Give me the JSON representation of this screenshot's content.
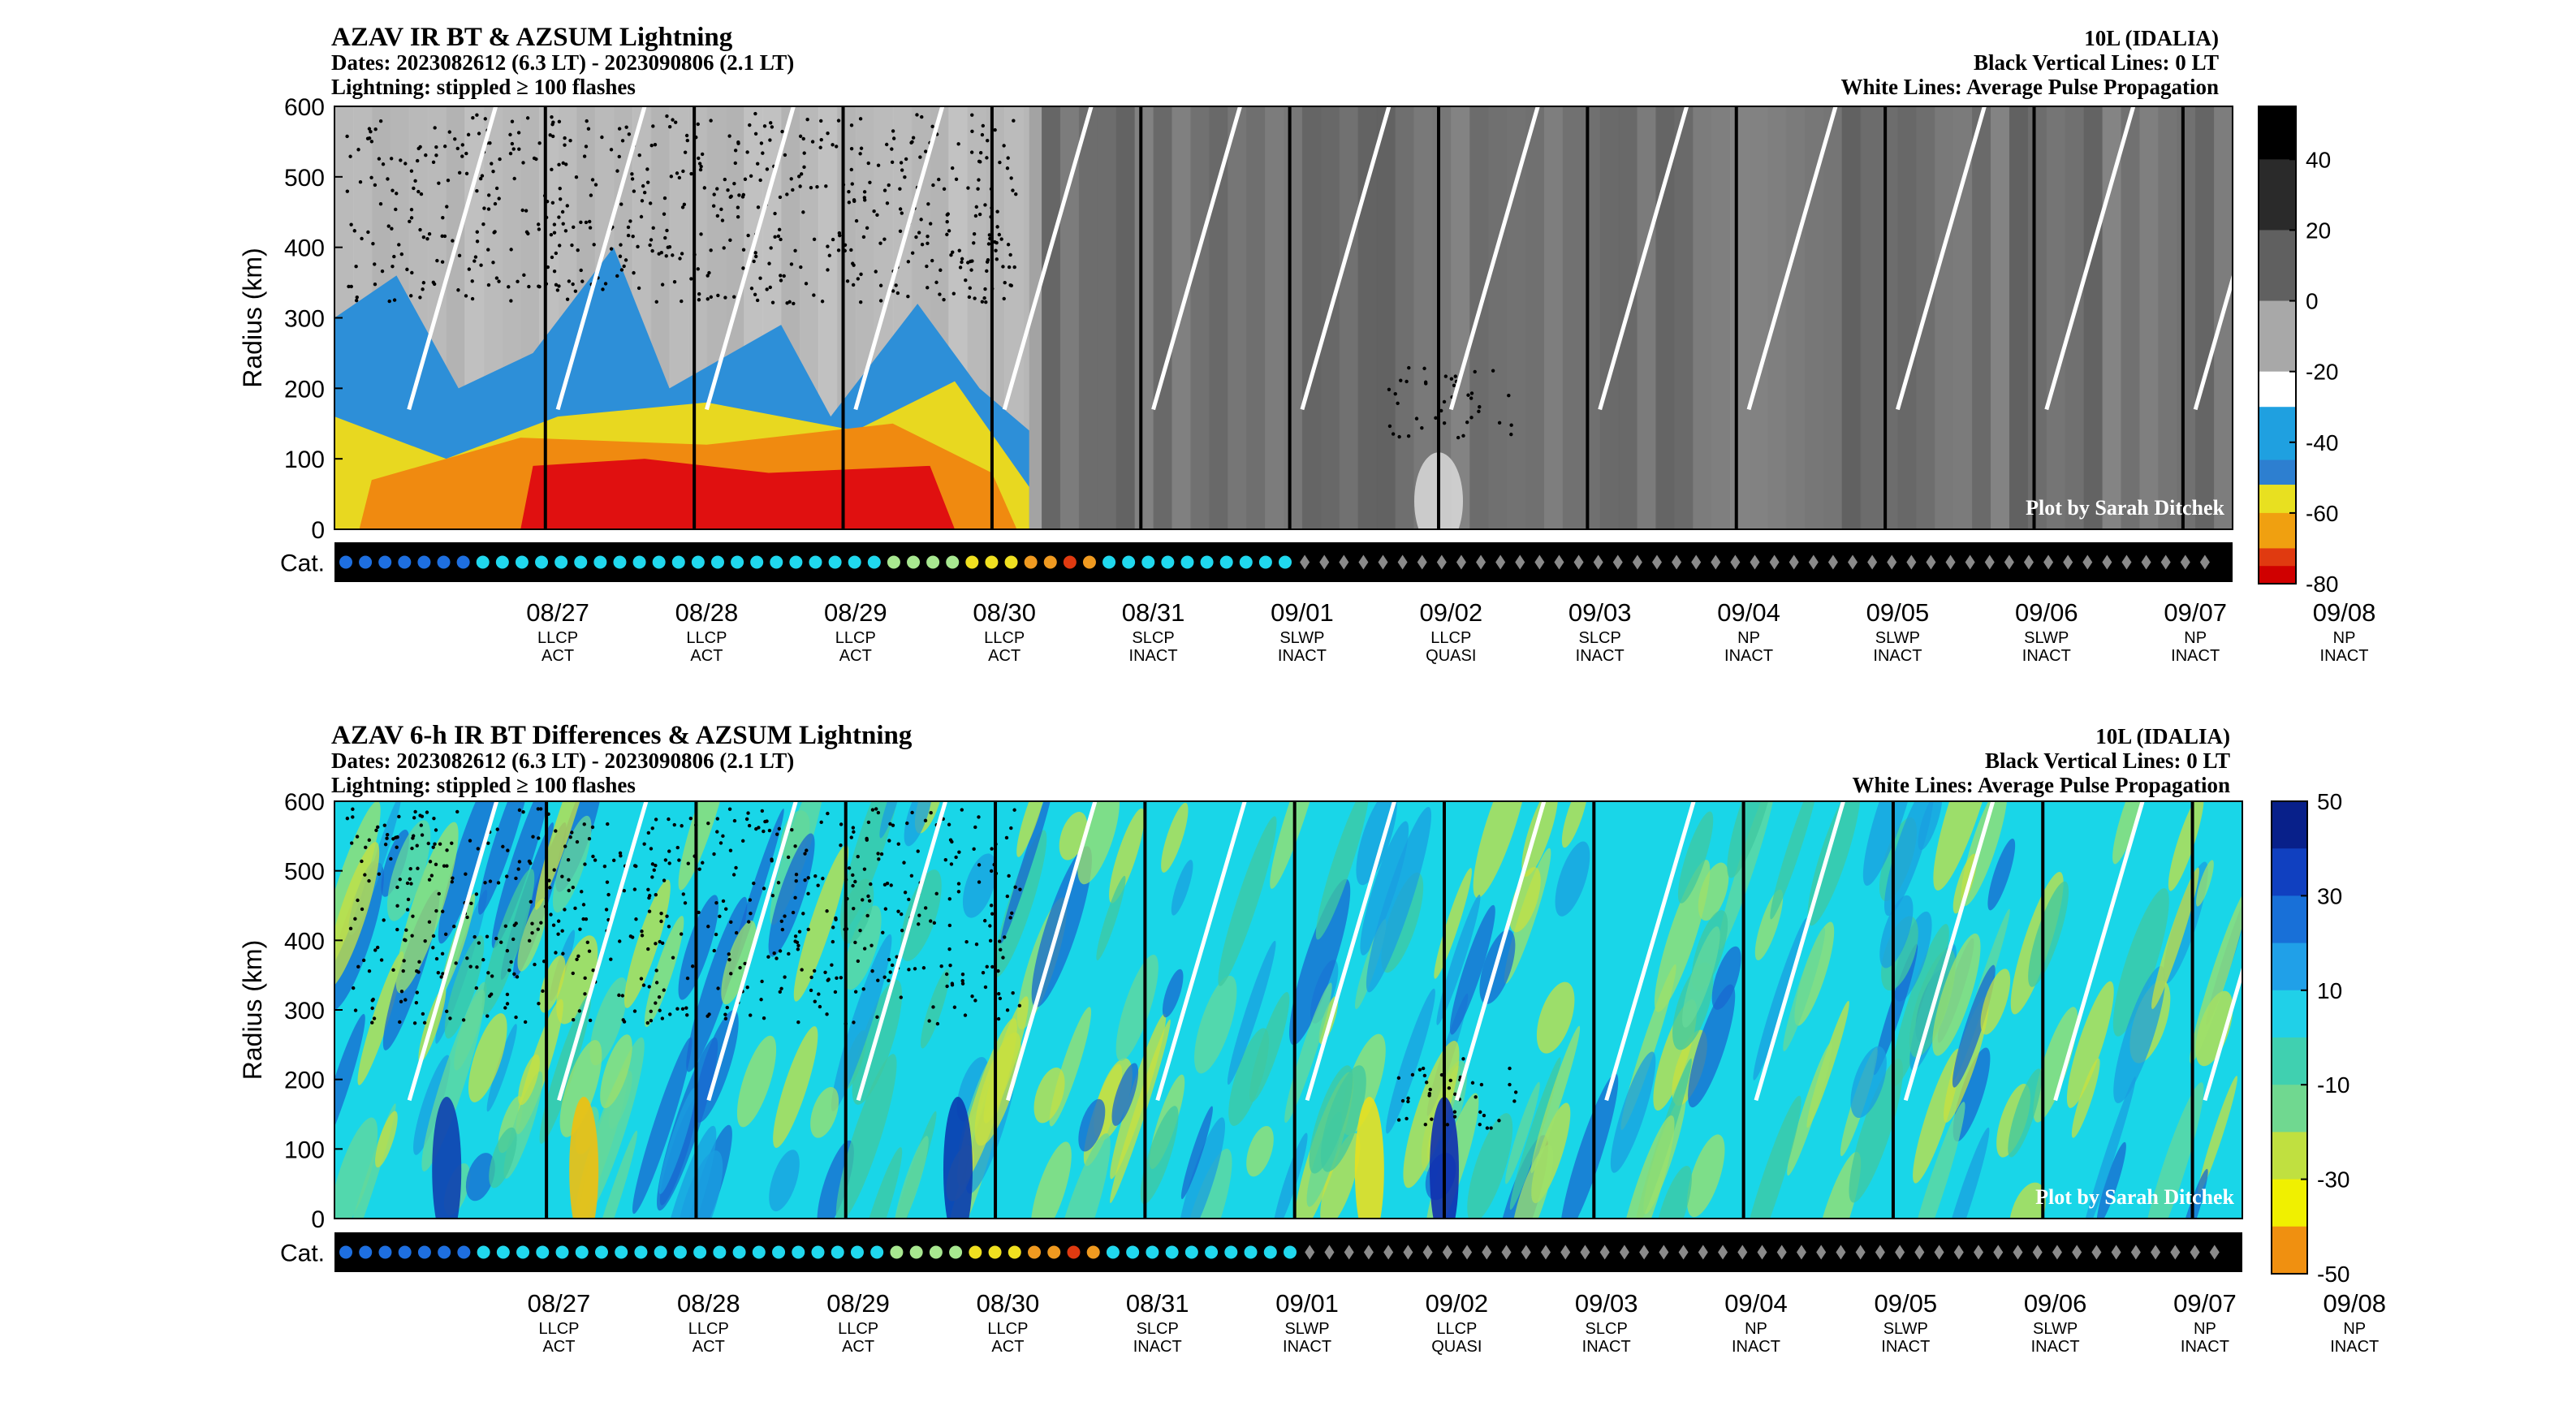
{
  "panels": [
    {
      "title": "AZAV IR BT & AZSUM Lightning",
      "dates": "Dates: 2023082612 (6.3 LT) - 2023090806 (2.1 LT)",
      "lightning": "Lightning: stippled ≥ 100 flashes",
      "storm": "10L (IDALIA)",
      "vlines_note": "Black Vertical Lines: 0 LT",
      "wlines_note": "White Lines: Average Pulse Propagation",
      "credit": "Plot by Sarah Ditchek",
      "ylabel": "Radius (km)",
      "cat_label": "Cat.",
      "yticks": [
        "0",
        "100",
        "200",
        "300",
        "400",
        "500",
        "600"
      ],
      "colorbar": {
        "ticks": [
          "40",
          "20",
          "0",
          "-20",
          "-40",
          "-60",
          "-80"
        ],
        "range": [
          -80,
          55
        ]
      }
    },
    {
      "title": "AZAV 6-h IR BT Differences & AZSUM Lightning",
      "dates": "Dates: 2023082612 (6.3 LT) - 2023090806 (2.1 LT)",
      "lightning": "Lightning: stippled ≥ 100 flashes",
      "storm": "10L (IDALIA)",
      "vlines_note": "Black Vertical Lines: 0 LT",
      "wlines_note": "White Lines: Average Pulse Propagation",
      "credit": "Plot by Sarah Ditchek",
      "ylabel": "Radius (km)",
      "cat_label": "Cat.",
      "yticks": [
        "0",
        "100",
        "200",
        "300",
        "400",
        "500",
        "600"
      ],
      "colorbar": {
        "ticks": [
          "50",
          "30",
          "10",
          "-10",
          "-30",
          "-50"
        ],
        "range": [
          -50,
          50
        ]
      }
    }
  ],
  "chart_data": {
    "type": "heatmap",
    "x_dates": [
      "08/27",
      "08/28",
      "08/29",
      "08/30",
      "08/31",
      "09/01",
      "09/02",
      "09/03",
      "09/04",
      "09/05",
      "09/06",
      "09/07",
      "09/08"
    ],
    "stage": [
      "LLCP",
      "LLCP",
      "LLCP",
      "LLCP",
      "SLCP",
      "SLWP",
      "LLCP",
      "SLCP",
      "NP",
      "SLWP",
      "SLWP",
      "NP",
      "NP"
    ],
    "activity": [
      "ACT",
      "ACT",
      "ACT",
      "ACT",
      "INACT",
      "INACT",
      "QUASI",
      "INACT",
      "INACT",
      "INACT",
      "INACT",
      "INACT",
      "INACT"
    ],
    "x_range_hours": [
      0,
      306
    ],
    "y_range_km": [
      0,
      600
    ],
    "grid": false,
    "category_marker_colors": {
      "TD": "#1e6fe0",
      "TS": "#20d8ee",
      "H1": "#a8e890",
      "H2": "#f0e020",
      "H3": "#f09a20",
      "H4": "#e03a10",
      "non-tropical": "#8a8a8a"
    },
    "category_series": [
      "TD",
      "TD",
      "TD",
      "TD",
      "TD",
      "TD",
      "TD",
      "TS",
      "TS",
      "TS",
      "TS",
      "TS",
      "TS",
      "TS",
      "TS",
      "TS",
      "TS",
      "TS",
      "TS",
      "TS",
      "TS",
      "TS",
      "TS",
      "TS",
      "TS",
      "TS",
      "TS",
      "TS",
      "H1",
      "H1",
      "H1",
      "H1",
      "H2",
      "H2",
      "H2",
      "H3",
      "H3",
      "H4",
      "H3",
      "TS",
      "TS",
      "TS",
      "TS",
      "TS",
      "TS",
      "TS",
      "TS",
      "TS",
      "TS"
    ]
  }
}
